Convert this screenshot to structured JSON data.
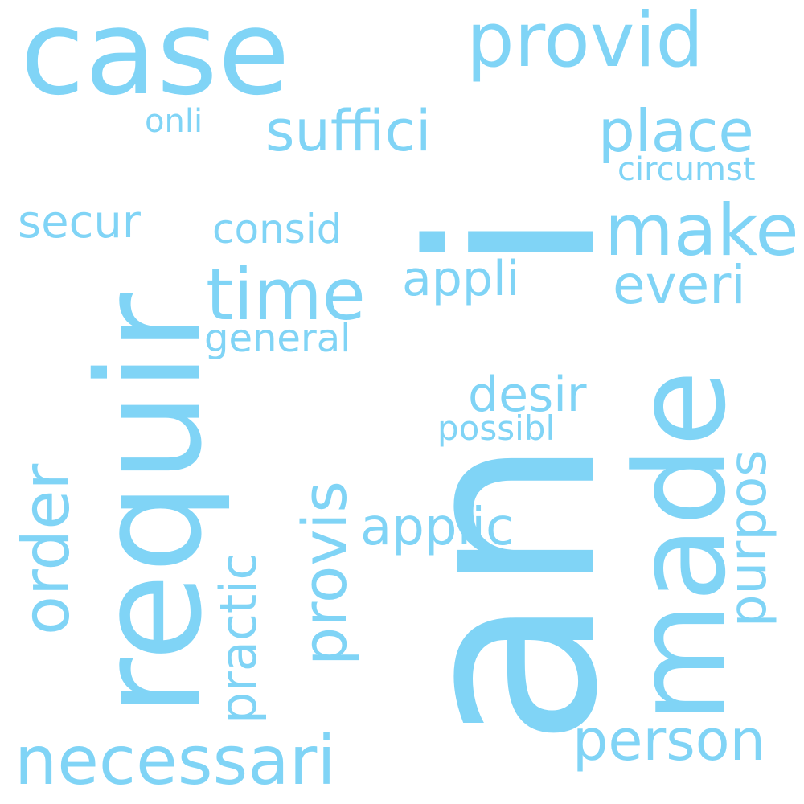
{
  "word_cloud": {
    "color": "#80d4f6",
    "background": "#ffffff",
    "words": [
      {
        "text": "an",
        "orientation": "vertical"
      },
      {
        "text": "case",
        "orientation": "horizontal"
      },
      {
        "text": "requir",
        "orientation": "vertical"
      },
      {
        "text": "i",
        "orientation": "vertical"
      },
      {
        "text": "made",
        "orientation": "vertical"
      },
      {
        "text": "provid",
        "orientation": "horizontal"
      },
      {
        "text": "necessari",
        "orientation": "horizontal"
      },
      {
        "text": "time",
        "orientation": "horizontal"
      },
      {
        "text": "provis",
        "orientation": "vertical"
      },
      {
        "text": "make",
        "orientation": "horizontal"
      },
      {
        "text": "order",
        "orientation": "vertical"
      },
      {
        "text": "suffici",
        "orientation": "horizontal"
      },
      {
        "text": "place",
        "orientation": "horizontal"
      },
      {
        "text": "person",
        "orientation": "horizontal"
      },
      {
        "text": "practic",
        "orientation": "vertical"
      },
      {
        "text": "everi",
        "orientation": "horizontal"
      },
      {
        "text": "purpos",
        "orientation": "vertical"
      },
      {
        "text": "applic",
        "orientation": "horizontal"
      },
      {
        "text": "appli",
        "orientation": "horizontal"
      },
      {
        "text": "desir",
        "orientation": "horizontal"
      },
      {
        "text": "secur",
        "orientation": "horizontal"
      },
      {
        "text": "consid",
        "orientation": "horizontal"
      },
      {
        "text": "general",
        "orientation": "horizontal"
      },
      {
        "text": "circumst",
        "orientation": "horizontal"
      },
      {
        "text": "possibl",
        "orientation": "horizontal"
      },
      {
        "text": "onli",
        "orientation": "horizontal"
      }
    ]
  }
}
